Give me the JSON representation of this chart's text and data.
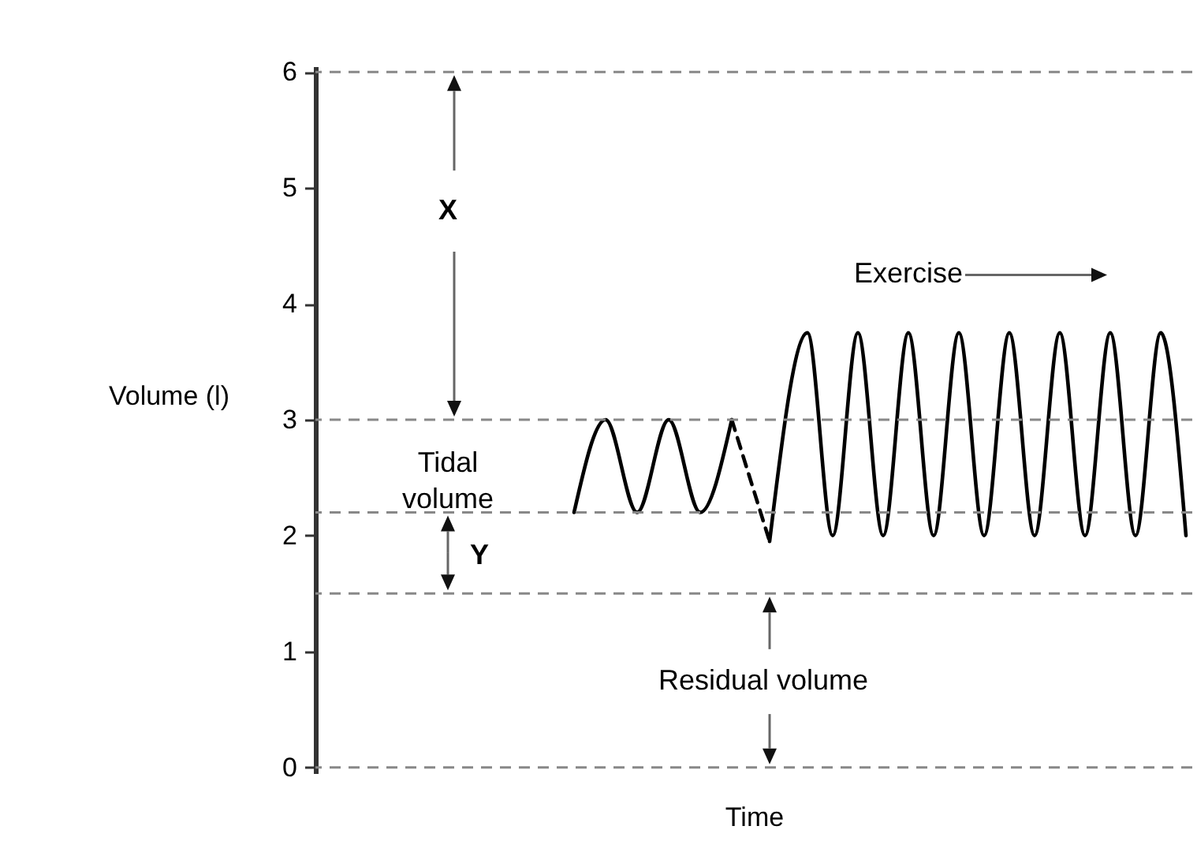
{
  "chart_data": {
    "type": "line",
    "xlabel": "Time",
    "ylabel": "Volume (l)",
    "categories": [
      null,
      null,
      null,
      null,
      null,
      null,
      null,
      null,
      null,
      null,
      null,
      null,
      null,
      null,
      null,
      null,
      null,
      null,
      null,
      null,
      null,
      null,
      null,
      null,
      null,
      null,
      null,
      null,
      null,
      null,
      null,
      null,
      null,
      null,
      null,
      null,
      null,
      null,
      null,
      null,
      null,
      null,
      null,
      null,
      null,
      null,
      null,
      null,
      null,
      null,
      null,
      null,
      null,
      null,
      null,
      null,
      null,
      null,
      null,
      null,
      null,
      null,
      null,
      null,
      null,
      null,
      null,
      null,
      null,
      null,
      null,
      null,
      null,
      null,
      null,
      null,
      null,
      null,
      null,
      null,
      null,
      null,
      null,
      null,
      null,
      null,
      null,
      null,
      null,
      null,
      null,
      null,
      null,
      null,
      null,
      null,
      null,
      null,
      null,
      null,
      null,
      null,
      null,
      null,
      null,
      null,
      null,
      null,
      null,
      null,
      null,
      null,
      null,
      null,
      null,
      null,
      null,
      null,
      null,
      null,
      null,
      null,
      null,
      null,
      null,
      null,
      null,
      null,
      null,
      null,
      null,
      null,
      null,
      null,
      null,
      null,
      null,
      null,
      null,
      null
    ],
    "series": [
      {
        "color": "#000000",
        "line_style": "solid",
        "values": [
          null,
          null,
          null,
          null,
          null,
          null,
          null,
          null,
          null,
          null,
          null,
          null,
          null,
          null,
          null,
          null,
          null,
          null,
          null,
          null,
          null,
          null,
          null,
          null,
          null,
          null,
          null,
          null,
          null,
          null,
          null,
          null,
          null,
          null,
          null,
          null,
          null,
          null,
          null,
          null,
          null,
          2.2,
          null,
          null,
          null,
          null,
          3.0,
          null,
          null,
          null,
          null,
          2.2,
          null,
          null,
          null,
          null,
          3.0,
          null,
          null,
          null,
          null,
          2.2,
          null,
          null,
          null,
          null,
          3.0,
          null,
          null,
          null,
          null,
          null,
          null,
          null,
          null,
          null,
          null,
          null,
          null,
          null,
          null,
          null,
          null,
          null,
          null,
          null,
          null,
          null,
          null,
          null,
          null,
          null,
          null,
          null,
          null,
          null,
          null,
          null,
          null,
          null,
          null,
          null,
          null,
          null,
          null,
          null,
          null,
          null,
          null,
          null,
          null,
          null,
          null,
          null,
          null,
          null,
          null,
          null,
          null,
          null,
          null,
          null,
          null,
          null,
          null,
          null,
          null,
          null,
          null,
          null,
          null,
          null,
          null,
          null,
          null,
          null,
          null,
          null,
          null,
          null
        ]
      },
      {
        "color": "#000000",
        "line_style": "dashed",
        "values": [
          null,
          null,
          null,
          null,
          null,
          null,
          null,
          null,
          null,
          null,
          null,
          null,
          null,
          null,
          null,
          null,
          null,
          null,
          null,
          null,
          null,
          null,
          null,
          null,
          null,
          null,
          null,
          null,
          null,
          null,
          null,
          null,
          null,
          null,
          null,
          null,
          null,
          null,
          null,
          null,
          null,
          null,
          null,
          null,
          null,
          null,
          null,
          null,
          null,
          null,
          null,
          null,
          null,
          null,
          null,
          null,
          null,
          null,
          null,
          null,
          null,
          null,
          null,
          null,
          null,
          null,
          3.0,
          null,
          null,
          null,
          null,
          null,
          1.95,
          null,
          null,
          null,
          null,
          null,
          null,
          null,
          null,
          null,
          null,
          null,
          null,
          null,
          null,
          null,
          null,
          null,
          null,
          null,
          null,
          null,
          null,
          null,
          null,
          null,
          null,
          null,
          null,
          null,
          null,
          null,
          null,
          null,
          null,
          null,
          null,
          null,
          null,
          null,
          null,
          null,
          null,
          null,
          null,
          null,
          null,
          null,
          null,
          null,
          null,
          null,
          null,
          null,
          null,
          null,
          null,
          null,
          null,
          null,
          null,
          null,
          null,
          null,
          null,
          null,
          null,
          null
        ]
      },
      {
        "color": "#000000",
        "line_style": "solid",
        "values": [
          null,
          null,
          null,
          null,
          null,
          null,
          null,
          null,
          null,
          null,
          null,
          null,
          null,
          null,
          null,
          null,
          null,
          null,
          null,
          null,
          null,
          null,
          null,
          null,
          null,
          null,
          null,
          null,
          null,
          null,
          null,
          null,
          null,
          null,
          null,
          null,
          null,
          null,
          null,
          null,
          null,
          null,
          null,
          null,
          null,
          null,
          null,
          null,
          null,
          null,
          null,
          null,
          null,
          null,
          null,
          null,
          null,
          null,
          null,
          null,
          null,
          null,
          null,
          null,
          null,
          null,
          null,
          null,
          null,
          null,
          null,
          null,
          1.95,
          null,
          null,
          null,
          null,
          null,
          3.75,
          null,
          null,
          null,
          2.0,
          null,
          null,
          null,
          3.75,
          null,
          null,
          null,
          2.0,
          null,
          null,
          null,
          3.75,
          null,
          null,
          null,
          2.0,
          null,
          null,
          null,
          3.75,
          null,
          null,
          null,
          2.0,
          null,
          null,
          null,
          3.75,
          null,
          null,
          null,
          2.0,
          null,
          null,
          null,
          3.75,
          null,
          null,
          null,
          2.0,
          null,
          null,
          null,
          3.75,
          null,
          null,
          null,
          2.0,
          null,
          null,
          null,
          3.75,
          null,
          null,
          null,
          2.0,
          null
        ]
      }
    ],
    "ylim": [
      -0.05,
      6.05
    ],
    "yticks": [
      0,
      1,
      2,
      3,
      4,
      5,
      6
    ],
    "tick_labels": "y",
    "ref_lines": [
      {
        "axis": "y",
        "value": 6,
        "color": "#888888",
        "line_style": "dashed"
      },
      {
        "axis": "y",
        "value": 3,
        "color": "#888888",
        "line_style": "dashed"
      },
      {
        "axis": "y",
        "value": 2.2,
        "color": "#888888",
        "line_style": "dashed"
      },
      {
        "axis": "y",
        "value": 1.5,
        "color": "#888888",
        "line_style": "dashed"
      },
      {
        "axis": "y",
        "value": 0,
        "color": "#888888",
        "line_style": "dashed"
      }
    ],
    "annotations": [
      "X",
      "Tidal volume",
      "Y",
      "Residual volume",
      "Exercise"
    ]
  }
}
